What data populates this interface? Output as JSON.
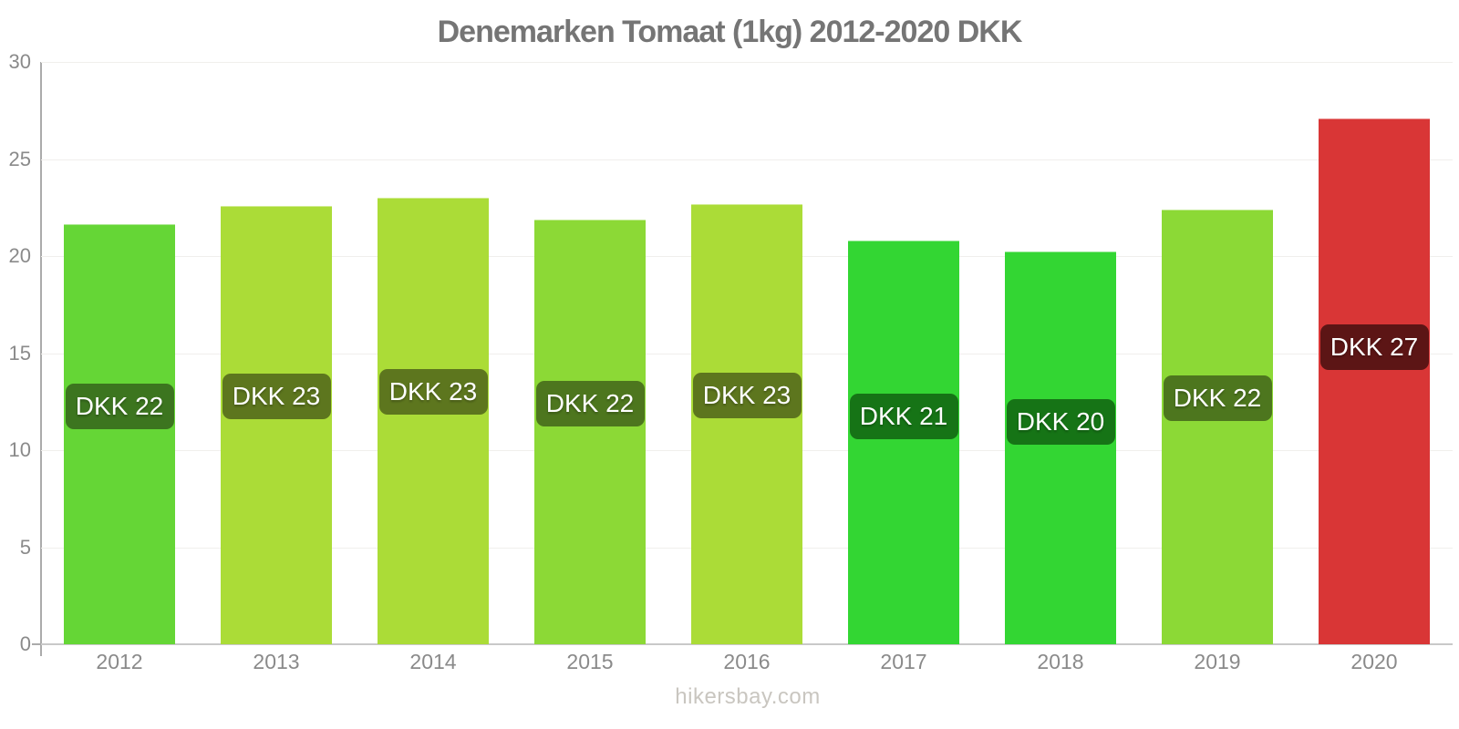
{
  "title": "Denemarken Tomaat (1kg) 2012-2020 DKK",
  "footer": "hikersbay.com",
  "colors": {
    "title_text": "#757575",
    "axis_line": "#ababab",
    "baseline": "#c9c9c9",
    "gridline": "#f0efec",
    "tick_text": "#8a8a8a",
    "footer_text": "#c9c6c0",
    "badge_text": "#ffffff"
  },
  "chart_data": {
    "type": "bar",
    "title": "Denemarken Tomaat (1kg) 2012-2020 DKK",
    "xlabel": "",
    "ylabel": "",
    "ylim": [
      0,
      30
    ],
    "yticks": [
      0,
      5,
      10,
      15,
      20,
      25,
      30
    ],
    "grid": "horizontal-faint",
    "legend": "none",
    "categories": [
      "2012",
      "2013",
      "2014",
      "2015",
      "2016",
      "2017",
      "2018",
      "2019",
      "2020"
    ],
    "values": [
      21.65,
      22.6,
      23.0,
      21.9,
      22.7,
      20.8,
      20.25,
      22.4,
      27.1
    ],
    "display_labels": [
      "DKK 22",
      "DKK 23",
      "DKK 23",
      "DKK 22",
      "DKK 23",
      "DKK 21",
      "DKK 20",
      "DKK 22",
      "DKK 27"
    ],
    "bar_colors": [
      "#65d636",
      "#abdc37",
      "#abdc37",
      "#8cd936",
      "#abdc37",
      "#33d633",
      "#33d633",
      "#8cd936",
      "#d93636"
    ],
    "badge_colors": [
      "#3c751f",
      "#5d761e",
      "#5d761e",
      "#4d761e",
      "#5d761e",
      "#167416",
      "#167416",
      "#4d761e",
      "#5c1515"
    ],
    "label_anchor_fraction": 0.565
  }
}
